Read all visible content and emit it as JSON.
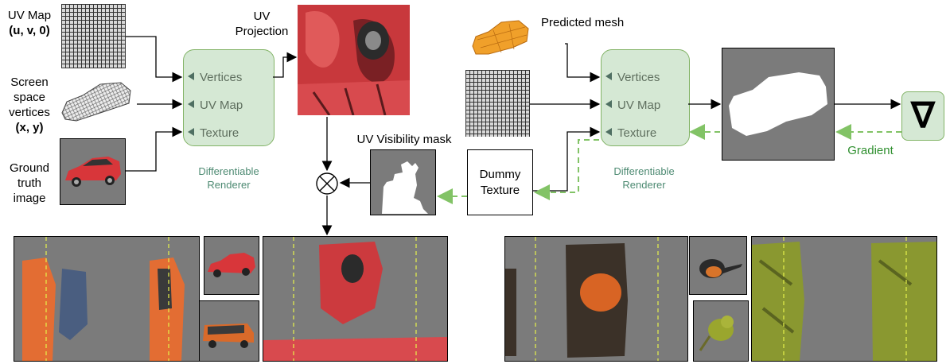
{
  "left_inputs": {
    "uv_map": {
      "line1": "UV Map",
      "line2": "(u, v, 0)"
    },
    "screen_space": {
      "line1": "Screen",
      "line2": "space",
      "line3": "vertices",
      "line4": "(x, y)"
    },
    "ground_truth": {
      "line1": "Ground",
      "line2": "truth",
      "line3": "image"
    }
  },
  "uv_projection": {
    "line1": "UV",
    "line2": "Projection"
  },
  "renderer_left": {
    "ports": [
      "Vertices",
      "UV Map",
      "Texture"
    ],
    "caption_line1": "Differentiable",
    "caption_line2": "Renderer"
  },
  "renderer_right": {
    "ports": [
      "Vertices",
      "UV Map",
      "Texture"
    ],
    "caption_line1": "Differentiable",
    "caption_line2": "Renderer"
  },
  "predicted_mesh": "Predicted mesh",
  "uv_visibility_mask": "UV Visibility mask",
  "dummy_texture": {
    "line1": "Dummy",
    "line2": "Texture"
  },
  "gradient_label": "Gradient",
  "gradient_symbol": "∇",
  "multiply_symbol": "⊗",
  "colors": {
    "renderer_fill": "#d5e8d4",
    "renderer_border": "#82b366",
    "renderer_text": "#5f6f5f",
    "gradient_arrow": "#82c366",
    "gradient_text": "#2f8f2f",
    "placeholder_gray": "#7b7b7b",
    "dashed_separator": "#e6f24a"
  },
  "icons": [
    "car-mesh-icon",
    "car-photo-icon",
    "orange-car-mesh-icon",
    "car-silhouette-icon",
    "visibility-mask-icon",
    "bird-photo-icon"
  ]
}
